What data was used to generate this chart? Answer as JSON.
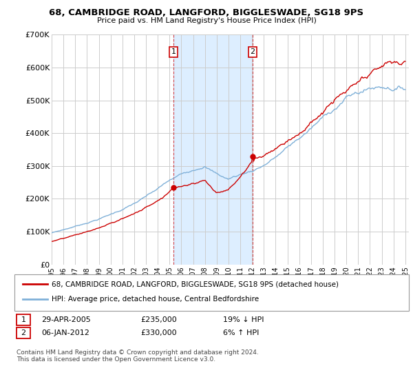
{
  "title_line1": "68, CAMBRIDGE ROAD, LANGFORD, BIGGLESWADE, SG18 9PS",
  "title_line2": "Price paid vs. HM Land Registry's House Price Index (HPI)",
  "legend_label1": "68, CAMBRIDGE ROAD, LANGFORD, BIGGLESWADE, SG18 9PS (detached house)",
  "legend_label2": "HPI: Average price, detached house, Central Bedfordshire",
  "purchase1_date": "29-APR-2005",
  "purchase1_price": "£235,000",
  "purchase1_hpi": "19% ↓ HPI",
  "purchase2_date": "06-JAN-2012",
  "purchase2_price": "£330,000",
  "purchase2_hpi": "6% ↑ HPI",
  "footer": "Contains HM Land Registry data © Crown copyright and database right 2024.\nThis data is licensed under the Open Government Licence v3.0.",
  "house_color": "#cc0000",
  "hpi_color": "#7fb0d8",
  "shaded_region_color": "#ddeeff",
  "grid_color": "#cccccc",
  "ylim": [
    0,
    700000
  ],
  "yticks": [
    0,
    100000,
    200000,
    300000,
    400000,
    500000,
    600000,
    700000
  ],
  "ytick_labels": [
    "£0",
    "£100K",
    "£200K",
    "£300K",
    "£400K",
    "£500K",
    "£600K",
    "£700K"
  ],
  "purchase1_year": 2005.33,
  "purchase1_value": 235000,
  "purchase2_year": 2012.04,
  "purchase2_value": 330000,
  "xtick_years": [
    1995,
    1996,
    1997,
    1998,
    1999,
    2000,
    2001,
    2002,
    2003,
    2004,
    2005,
    2006,
    2007,
    2008,
    2009,
    2010,
    2011,
    2012,
    2013,
    2014,
    2015,
    2016,
    2017,
    2018,
    2019,
    2020,
    2021,
    2022,
    2023,
    2024,
    2025
  ]
}
